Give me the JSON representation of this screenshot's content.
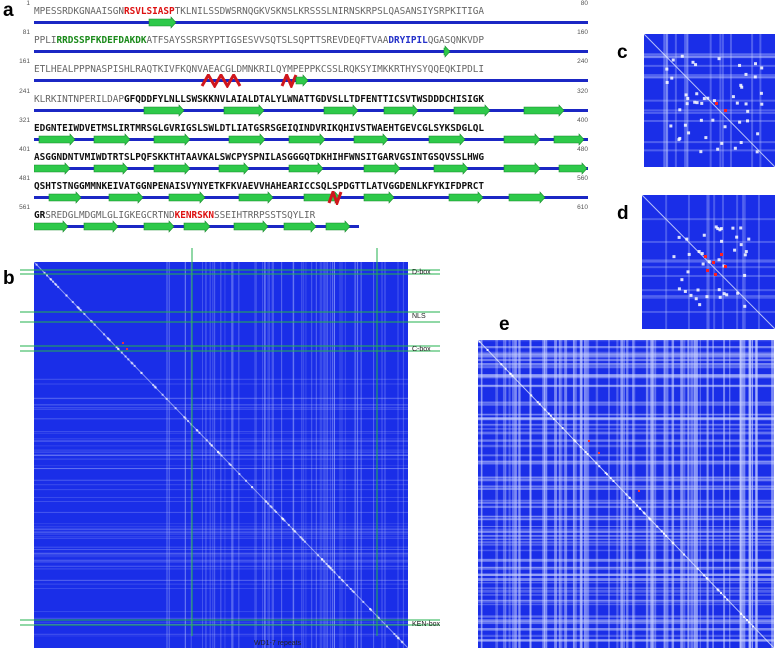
{
  "panels": {
    "a": "a",
    "b": "b",
    "c": "c",
    "d": "d",
    "e": "e"
  },
  "sequence_rows": [
    {
      "start": "1",
      "end": "80",
      "segments": [
        [
          "MPESSRDKGNAAISGN",
          ""
        ],
        [
          "RSVLSIASP",
          "red"
        ],
        [
          "TKLNILSSDWSRNQGKVSKNSLKRSSSLNIRNSKRPSLQASANSIYSRPKITIGA",
          ""
        ]
      ]
    },
    {
      "start": "81",
      "end": "160",
      "segments": [
        [
          "PPLI",
          ""
        ],
        [
          "RRDSSPFKDEFDAKDK",
          "green"
        ],
        [
          "ATFSAYSSRSRYPTIGSESVVSQTSLSQPTTSREVDEQFTVAA",
          ""
        ],
        [
          "DRYIPIL",
          "blue"
        ],
        [
          "QGASQNKVDP",
          ""
        ]
      ]
    },
    {
      "start": "161",
      "end": "240",
      "segments": [
        [
          "ETLHEALPPPNASPISHLRAQTKIVFKQNVAEACGLDMNKRILQYMPEPPKCSSLRQKSYIMKKRTHYSYQQEQKIPDLI",
          ""
        ]
      ]
    },
    {
      "start": "241",
      "end": "320",
      "segments": [
        [
          "KLRKINTNPERILDAP",
          ""
        ],
        [
          "GFQDDFYLNLLSWSKKNVLAIALDTALYLWNATTGDVSLLTDFENTTICSVTWSDDDCHISIGK",
          "bold"
        ]
      ]
    },
    {
      "start": "321",
      "end": "400",
      "segments": [
        [
          "EDGNTEIWDVETMSLIRTMRSGLGVRIGSLSWLDTLIATGSRSGEIQINDVRIKQHIVSTWAEHTGEVCGLSYKSDGLQL",
          "bold"
        ]
      ]
    },
    {
      "start": "401",
      "end": "480",
      "segments": [
        [
          "ASGGNDNTVMIWDTRTSLPQFSKKTHTAAVKALSWCPYSPNILASGGGQTDKHIHFWNSITGARVGSINTGSQVSSLHWG",
          "bold"
        ]
      ]
    },
    {
      "start": "481",
      "end": "560",
      "segments": [
        [
          "QSHTSTNGGMMNKEIVATGGNPENAISVYNYETKFKVAEVVHAHEARICCSQLSPDGTTLATVGGDENLKFYKIFDPRCT",
          "bold"
        ]
      ]
    },
    {
      "start": "561",
      "end": "610",
      "segments": [
        [
          "GR",
          "bold"
        ],
        [
          "SREDGLMDGMLGLIGKEGCRTND",
          ""
        ],
        [
          "KENRSKN",
          "red"
        ],
        [
          "SSEIHTRRPSSTSQYLIR",
          ""
        ]
      ]
    }
  ],
  "map_b": {
    "labels": {
      "dbox": "D-box",
      "nls": "NLS",
      "cbox": "C-box",
      "kenbox": "KEN-box",
      "wd": "WD1-7 repeats"
    }
  },
  "colors": {
    "heatmap_bg": "#1a2ee8",
    "marker_lines": "#22b24c",
    "helix": "#d0161c",
    "strand": "#2ec94a",
    "coil": "#1b27c4"
  }
}
